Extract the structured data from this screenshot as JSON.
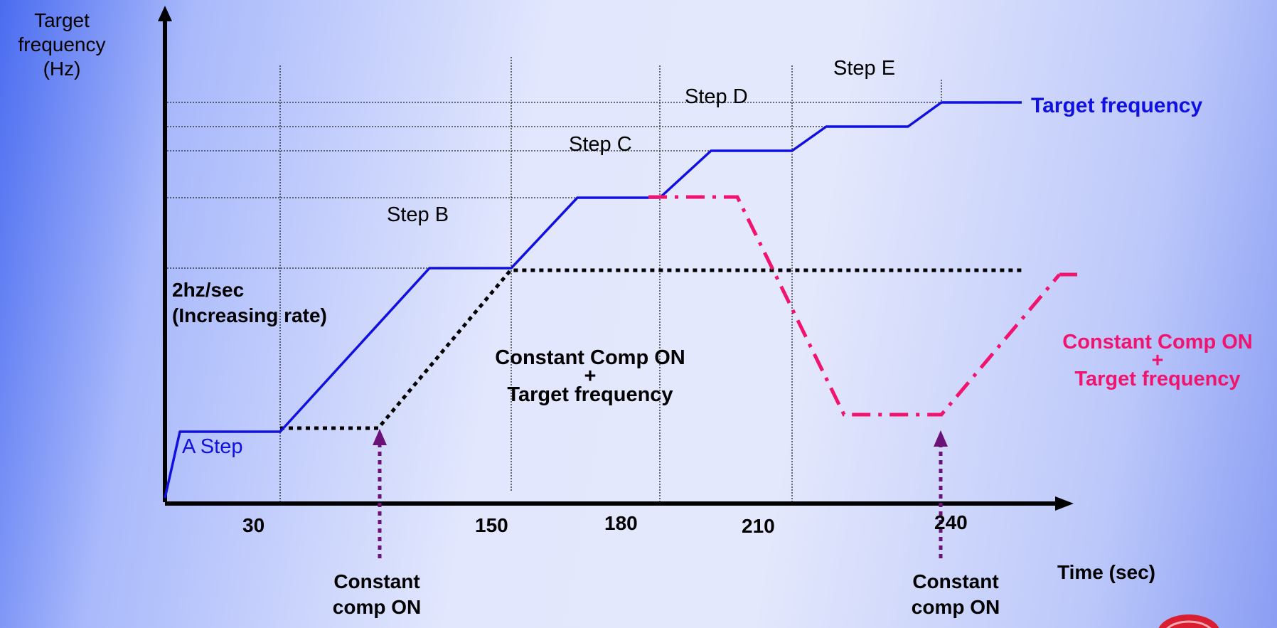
{
  "axes": {
    "y_label": [
      "Target",
      "frequency",
      "(Hz)"
    ],
    "x_label": "Time (sec)",
    "x_ticks": [
      "30",
      "150",
      "180",
      "210",
      "240"
    ]
  },
  "steps": {
    "a": "A Step",
    "b": "Step B",
    "c": "Step C",
    "d": "Step D",
    "e": "Step E"
  },
  "rate_note": [
    "2hz/sec",
    "(Increasing rate)"
  ],
  "center_note": [
    "Constant Comp ON",
    "+",
    "Target frequency"
  ],
  "legend": {
    "target": "Target frequency",
    "combined": [
      "Constant Comp ON",
      "+",
      "Target frequency"
    ]
  },
  "arrows": {
    "left": [
      "Constant",
      "comp ON"
    ],
    "right": [
      "Constant",
      "comp ON"
    ]
  },
  "colors": {
    "target_line": "#1010e0",
    "combined_line": "#f0146e",
    "constant_line": "#000000",
    "arrow": "#6a1278"
  }
}
